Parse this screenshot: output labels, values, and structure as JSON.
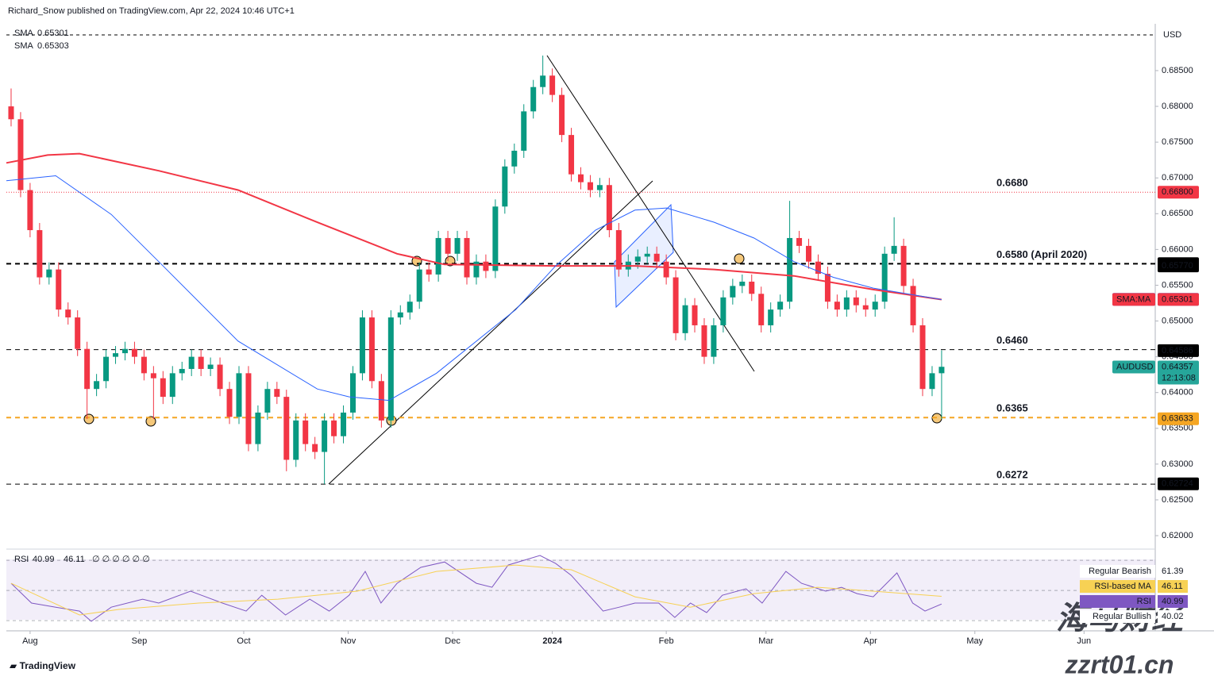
{
  "header": {
    "byline": "Richard_Snow published on TradingView.com, Apr 22, 2024 10:46 UTC+1",
    "currency": "USD",
    "brand": "TradingView",
    "watermark": "海马财经",
    "watermark_url": "zzrt01.cn"
  },
  "chart_data": [
    {
      "type": "candlestick",
      "name": "AUDUSD",
      "up_color": "#089981",
      "down_color": "#f23645",
      "xlim": [
        -5,
        237
      ],
      "ylim": [
        0.61834,
        0.69154
      ],
      "xticks": [
        {
          "value": 0,
          "label": "Aug"
        },
        {
          "value": 23,
          "label": "Sep"
        },
        {
          "value": 45,
          "label": "Oct"
        },
        {
          "value": 67,
          "label": "Nov"
        },
        {
          "value": 89,
          "label": "Dec"
        },
        {
          "value": 110,
          "label": "2024"
        },
        {
          "value": 134,
          "label": "Feb"
        },
        {
          "value": 155,
          "label": "Mar"
        },
        {
          "value": 177,
          "label": "Apr"
        },
        {
          "value": 199,
          "label": "May"
        },
        {
          "value": 222,
          "label": "Jun"
        }
      ],
      "yticks": [
        {
          "value": 0.62,
          "label": "0.62000"
        },
        {
          "value": 0.625,
          "label": "0.62500"
        },
        {
          "value": 0.63,
          "label": "0.63000"
        },
        {
          "value": 0.635,
          "label": "0.63500"
        },
        {
          "value": 0.64,
          "label": "0.64000"
        },
        {
          "value": 0.645,
          "label": "0.64500"
        },
        {
          "value": 0.65,
          "label": "0.65000"
        },
        {
          "value": 0.655,
          "label": "0.65500"
        },
        {
          "value": 0.66,
          "label": "0.66000"
        },
        {
          "value": 0.665,
          "label": "0.66500"
        },
        {
          "value": 0.67,
          "label": "0.67000"
        },
        {
          "value": 0.675,
          "label": "0.67500"
        },
        {
          "value": 0.68,
          "label": "0.68000"
        },
        {
          "value": 0.685,
          "label": "0.68500"
        }
      ],
      "x": [
        -4,
        -2,
        0,
        2,
        4,
        6,
        8,
        10,
        12,
        14,
        16,
        18,
        20,
        22,
        24,
        26,
        28,
        30,
        32,
        34,
        36,
        38,
        40,
        42,
        44,
        46,
        48,
        50,
        52,
        54,
        56,
        58,
        60,
        62,
        64,
        66,
        68,
        70,
        72,
        74,
        76,
        78,
        80,
        82,
        84,
        86,
        88,
        90,
        92,
        94,
        96,
        98,
        100,
        102,
        104,
        106,
        108,
        110,
        112,
        114,
        116,
        118,
        120,
        122,
        124,
        126,
        128,
        130,
        132,
        134,
        136,
        138,
        140,
        142,
        144,
        146,
        148,
        150,
        152,
        154,
        156,
        158,
        160,
        162,
        164,
        166,
        168,
        170,
        172,
        174,
        176,
        178,
        180,
        182,
        184,
        186,
        188,
        190,
        192
      ],
      "open": [
        0.68,
        0.6782,
        0.6683,
        0.6627,
        0.6561,
        0.6572,
        0.6516,
        0.6505,
        0.6461,
        0.6405,
        0.6416,
        0.645,
        0.6455,
        0.6461,
        0.645,
        0.6427,
        0.642,
        0.6394,
        0.6427,
        0.6433,
        0.645,
        0.6433,
        0.6439,
        0.6405,
        0.6366,
        0.6427,
        0.6328,
        0.6372,
        0.6405,
        0.6394,
        0.6306,
        0.6361,
        0.6328,
        0.6317,
        0.6361,
        0.6339,
        0.6372,
        0.6427,
        0.6505,
        0.6416,
        0.6361,
        0.6505,
        0.6512,
        0.6527,
        0.6572,
        0.6565,
        0.6616,
        0.6594,
        0.6616,
        0.6561,
        0.6583,
        0.657,
        0.666,
        0.6716,
        0.6738,
        0.6793,
        0.6827,
        0.6843,
        0.6816,
        0.676,
        0.6705,
        0.6694,
        0.6683,
        0.669,
        0.6627,
        0.6572,
        0.6583,
        0.659,
        0.6594,
        0.6583,
        0.6561,
        0.6483,
        0.6522,
        0.6494,
        0.645,
        0.6494,
        0.6533,
        0.6549,
        0.6555,
        0.6538,
        0.6494,
        0.6516,
        0.6527,
        0.6616,
        0.6605,
        0.6583,
        0.6566,
        0.6527,
        0.6516,
        0.6533,
        0.6522,
        0.6516,
        0.6527,
        0.6594,
        0.6605,
        0.6549,
        0.6494,
        0.6405,
        0.6427
      ],
      "high": [
        0.6825,
        0.6792,
        0.6693,
        0.6637,
        0.6582,
        0.6582,
        0.6526,
        0.6515,
        0.6471,
        0.6426,
        0.646,
        0.6465,
        0.6471,
        0.6471,
        0.646,
        0.6437,
        0.643,
        0.6437,
        0.6443,
        0.646,
        0.646,
        0.6449,
        0.6449,
        0.6415,
        0.6437,
        0.6437,
        0.6382,
        0.6415,
        0.6415,
        0.6404,
        0.6371,
        0.6371,
        0.6338,
        0.6371,
        0.6371,
        0.6382,
        0.6437,
        0.6515,
        0.6515,
        0.6426,
        0.6515,
        0.6522,
        0.6537,
        0.6582,
        0.6582,
        0.6626,
        0.6626,
        0.6626,
        0.6626,
        0.6593,
        0.6593,
        0.667,
        0.6726,
        0.6748,
        0.6803,
        0.6837,
        0.6871,
        0.6853,
        0.6826,
        0.677,
        0.6715,
        0.6704,
        0.67,
        0.67,
        0.6637,
        0.6593,
        0.66,
        0.6604,
        0.6604,
        0.6593,
        0.6571,
        0.6532,
        0.6532,
        0.6504,
        0.6504,
        0.6543,
        0.6559,
        0.6565,
        0.6565,
        0.6548,
        0.6526,
        0.6537,
        0.6668,
        0.6626,
        0.6615,
        0.6593,
        0.6576,
        0.6537,
        0.6543,
        0.6543,
        0.6532,
        0.6537,
        0.6604,
        0.6645,
        0.6615,
        0.6559,
        0.6504,
        0.6437,
        0.6459
      ],
      "low": [
        0.6772,
        0.6673,
        0.6617,
        0.6551,
        0.6551,
        0.6506,
        0.6495,
        0.6451,
        0.6363,
        0.6395,
        0.6406,
        0.644,
        0.6445,
        0.644,
        0.6417,
        0.6363,
        0.6384,
        0.6384,
        0.6417,
        0.6423,
        0.6423,
        0.6423,
        0.6395,
        0.6356,
        0.6356,
        0.6318,
        0.6318,
        0.6362,
        0.6384,
        0.629,
        0.6296,
        0.6318,
        0.6307,
        0.6272,
        0.6329,
        0.6329,
        0.6362,
        0.6417,
        0.6406,
        0.6351,
        0.6351,
        0.6495,
        0.6502,
        0.6517,
        0.6555,
        0.6555,
        0.6584,
        0.6584,
        0.6551,
        0.6551,
        0.656,
        0.656,
        0.665,
        0.6706,
        0.6728,
        0.6783,
        0.6817,
        0.6806,
        0.675,
        0.6695,
        0.6684,
        0.6673,
        0.6673,
        0.6617,
        0.6562,
        0.6562,
        0.6573,
        0.658,
        0.6573,
        0.6551,
        0.6473,
        0.6473,
        0.6484,
        0.644,
        0.644,
        0.6484,
        0.6523,
        0.6539,
        0.6528,
        0.6484,
        0.6484,
        0.6506,
        0.6517,
        0.6595,
        0.6573,
        0.6556,
        0.6517,
        0.6506,
        0.6506,
        0.6512,
        0.6506,
        0.6506,
        0.6517,
        0.6584,
        0.6539,
        0.6484,
        0.6395,
        0.6395,
        0.6363
      ],
      "close": [
        0.6782,
        0.6683,
        0.6627,
        0.6561,
        0.6572,
        0.6516,
        0.6505,
        0.6461,
        0.6405,
        0.6416,
        0.645,
        0.6455,
        0.6461,
        0.645,
        0.6427,
        0.642,
        0.6394,
        0.6427,
        0.6433,
        0.645,
        0.6433,
        0.6439,
        0.6405,
        0.6366,
        0.6427,
        0.6328,
        0.6372,
        0.6405,
        0.6394,
        0.6306,
        0.6361,
        0.6328,
        0.6317,
        0.6361,
        0.6339,
        0.6372,
        0.6427,
        0.6505,
        0.6416,
        0.6361,
        0.6505,
        0.6512,
        0.6527,
        0.6572,
        0.6565,
        0.6616,
        0.6594,
        0.6616,
        0.6561,
        0.6583,
        0.657,
        0.666,
        0.6716,
        0.6738,
        0.6793,
        0.6827,
        0.6843,
        0.6816,
        0.676,
        0.6705,
        0.6694,
        0.6683,
        0.669,
        0.6627,
        0.6572,
        0.6583,
        0.659,
        0.6594,
        0.6583,
        0.6561,
        0.6483,
        0.6522,
        0.6494,
        0.645,
        0.6494,
        0.6533,
        0.6549,
        0.6555,
        0.6538,
        0.6494,
        0.6516,
        0.6527,
        0.6616,
        0.6605,
        0.6583,
        0.6566,
        0.6527,
        0.6516,
        0.6533,
        0.6522,
        0.6516,
        0.6527,
        0.6594,
        0.6605,
        0.6549,
        0.6494,
        0.6405,
        0.6427,
        0.6436
      ],
      "series": [
        {
          "name": "SMA",
          "legend_value": 0.65301,
          "color": "#f23645",
          "x": [
            -5,
            3.7,
            10.4,
            27.1,
            43.8,
            60.5,
            77.3,
            87.3,
            110.7,
            127.4,
            144.1,
            160.9,
            177.6,
            192
          ],
          "values": [
            0.6721,
            0.6732,
            0.6734,
            0.671,
            0.6683,
            0.6638,
            0.6594,
            0.6579,
            0.6577,
            0.6577,
            0.6572,
            0.6563,
            0.6544,
            0.653
          ]
        },
        {
          "name": "SMA",
          "legend_value": 0.65303,
          "color": "#2962ff",
          "x": [
            -5,
            5.4,
            17.1,
            27.1,
            43.8,
            60.5,
            67.2,
            75.6,
            85.6,
            102.3,
            110.7,
            119.1,
            127.4,
            134.1,
            144.1,
            152.5,
            160.9,
            169.2,
            177.6,
            192
          ],
          "values": [
            0.6696,
            0.6703,
            0.6649,
            0.6583,
            0.6472,
            0.6405,
            0.6394,
            0.6389,
            0.6427,
            0.6516,
            0.6577,
            0.6627,
            0.6655,
            0.6658,
            0.6638,
            0.6616,
            0.6583,
            0.6561,
            0.6546,
            0.653
          ]
        }
      ],
      "levels": [
        {
          "value": 0.668,
          "label": "0.6680",
          "color": "#f23645",
          "style": "dotted",
          "width": 1
        },
        {
          "value": 0.658,
          "label": "0.6580 (April 2020)",
          "color": "#000000",
          "style": "dashed",
          "width": 2
        },
        {
          "value": 0.646,
          "label": "0.6460",
          "color": "#000000",
          "style": "dashed",
          "width": 1
        },
        {
          "value": 0.6365,
          "label": "0.6365",
          "color": "#f5a623",
          "style": "dashed",
          "width": 2
        },
        {
          "value": 0.6272,
          "label": "0.6272",
          "color": "#000000",
          "style": "dashed",
          "width": 1
        }
      ],
      "price_tags": [
        {
          "value": 0.668,
          "label": "0.66800",
          "color": "#f23645"
        },
        {
          "value": 0.65802,
          "label": "0.65802",
          "color": "#000000"
        },
        {
          "value": 0.6577,
          "label": "0.65770",
          "color": "#000000"
        },
        {
          "name": "SMA:MA",
          "value": 0.65303,
          "label": "0.65303",
          "color": "#2962ff"
        },
        {
          "name": "SMA:MA",
          "value": 0.65301,
          "label": "0.65301",
          "color": "#f23645"
        },
        {
          "value": 0.64586,
          "label": "0.64586",
          "color": "#000000"
        },
        {
          "name": "AUDUSD",
          "value": 0.64357,
          "label": "0.64357",
          "countdown": "12:13:08",
          "color": "#26a69a"
        },
        {
          "value": 0.63633,
          "label": "0.63633",
          "color": "#f5a623"
        },
        {
          "value": 0.62724,
          "label": "0.62724",
          "color": "#000000"
        }
      ]
    },
    {
      "type": "line",
      "name": "RSI",
      "ylim": [
        23.2,
        77.4
      ],
      "levels": [
        70,
        50,
        30
      ],
      "header_extra": "∅ ∅ ∅ ∅ ∅ ∅",
      "series": [
        {
          "name": "RSI",
          "color": "#7e57c2",
          "x": [
            -4,
            0.3,
            5.4,
            10.4,
            12.9,
            17.1,
            23.7,
            27.1,
            33.8,
            40.5,
            45.5,
            48.8,
            53.8,
            58.9,
            63.0,
            67.2,
            70.6,
            73.9,
            77.3,
            82.3,
            87.3,
            94.0,
            97.3,
            100.7,
            107.4,
            110.7,
            114.0,
            120.7,
            124.1,
            127.4,
            132.4,
            135.8,
            139.1,
            142.5,
            145.8,
            150.8,
            154.2,
            159.2,
            162.5,
            167.6,
            170.9,
            174.2,
            177.6,
            182.6,
            185.9,
            188.5,
            192
          ],
          "values": [
            54.7,
            41.6,
            38.9,
            36.3,
            29.5,
            38.9,
            44.2,
            41.6,
            49.5,
            41.6,
            36.3,
            46.8,
            33.7,
            44.2,
            36.3,
            46.8,
            62.6,
            41.6,
            54.7,
            65.3,
            68.9,
            54.7,
            52.1,
            66.8,
            73.2,
            67.9,
            60,
            36.3,
            38.9,
            41.6,
            41.6,
            32.1,
            41.6,
            35.3,
            46.8,
            51.1,
            41.6,
            62.6,
            54.7,
            49.5,
            52.1,
            47.9,
            45.8,
            61.6,
            41.6,
            36.3,
            40.99
          ]
        },
        {
          "name": "RSI-based MA",
          "color": "#f7d154",
          "x": [
            -4,
            10.4,
            18.7,
            35.5,
            52.2,
            68.9,
            85.6,
            102.3,
            114.0,
            127.4,
            139.1,
            152.5,
            165.9,
            177.6,
            192
          ],
          "values": [
            54.7,
            33.7,
            37.4,
            41.6,
            44.2,
            49.5,
            62.6,
            66.8,
            63.7,
            45.8,
            38.9,
            47.9,
            52.1,
            49.5,
            46.11
          ]
        }
      ],
      "tags": [
        {
          "name": "Regular Bearish",
          "value": 61.39
        },
        {
          "name": "RSI-based MA",
          "value": 46.11
        },
        {
          "name": "RSI",
          "value": 40.99
        },
        {
          "name": "Regular Bullish",
          "value": 40.02
        }
      ]
    }
  ]
}
